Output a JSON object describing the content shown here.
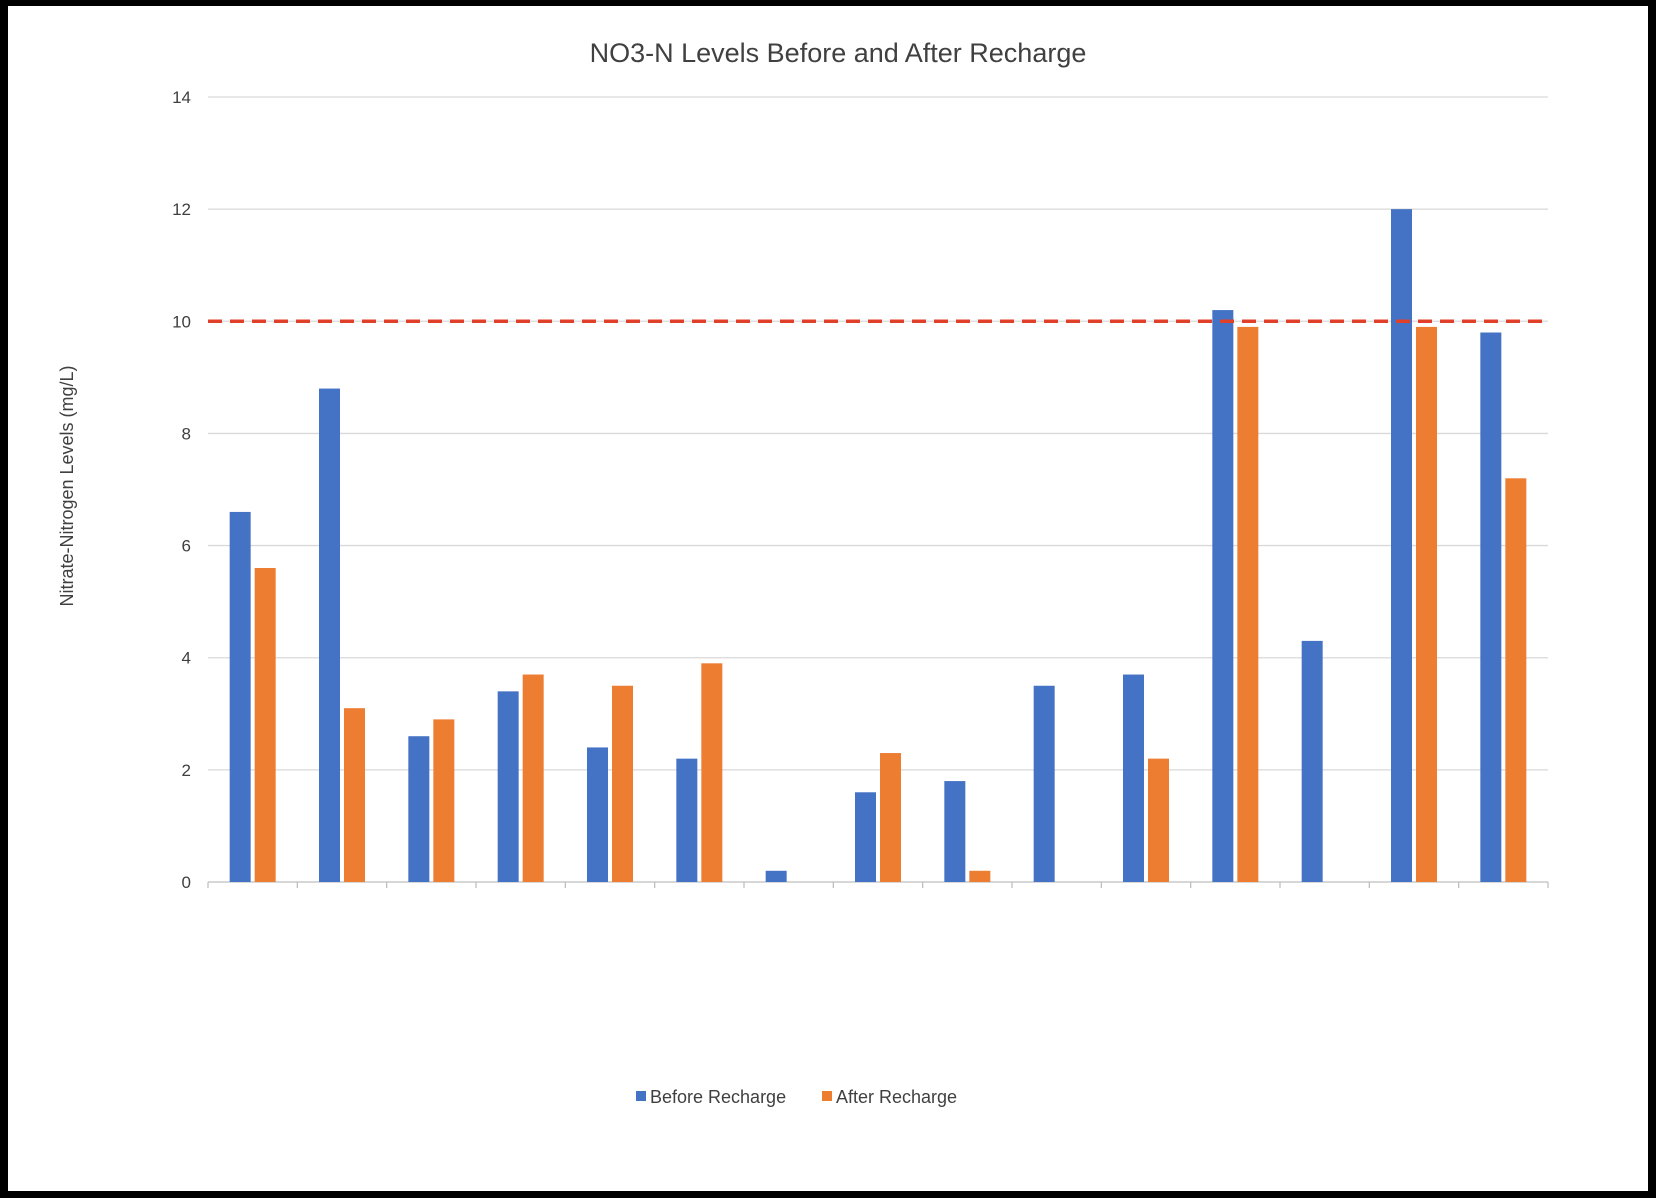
{
  "chart_data": {
    "type": "bar",
    "title": "NO3-N Levels Before and After Recharge",
    "xlabel": "",
    "ylabel": "Nitrate-Nitrogen Levels (mg/L)",
    "ylim": [
      0,
      14
    ],
    "yticks": [
      0,
      2,
      4,
      6,
      8,
      10,
      12,
      14
    ],
    "grid": true,
    "legend_position": "bottom",
    "categories": [
      "",
      "",
      "",
      "",
      "",
      "",
      "",
      "",
      "",
      "",
      "",
      "",
      "",
      "",
      ""
    ],
    "series": [
      {
        "name": "Before Recharge",
        "color": "#4472C4",
        "values": [
          6.6,
          8.8,
          2.6,
          3.4,
          2.4,
          2.2,
          0.2,
          1.6,
          1.8,
          3.5,
          3.7,
          10.2,
          4.3,
          12.0,
          9.8
        ]
      },
      {
        "name": "After Recharge",
        "color": "#ED7D31",
        "values": [
          5.6,
          3.1,
          2.9,
          3.7,
          3.5,
          3.9,
          0,
          2.3,
          0.2,
          0,
          2.2,
          9.9,
          0,
          9.9,
          7.2
        ]
      }
    ],
    "reference_line": {
      "value": 10,
      "color": "#E0402A",
      "style": "dashed"
    }
  }
}
